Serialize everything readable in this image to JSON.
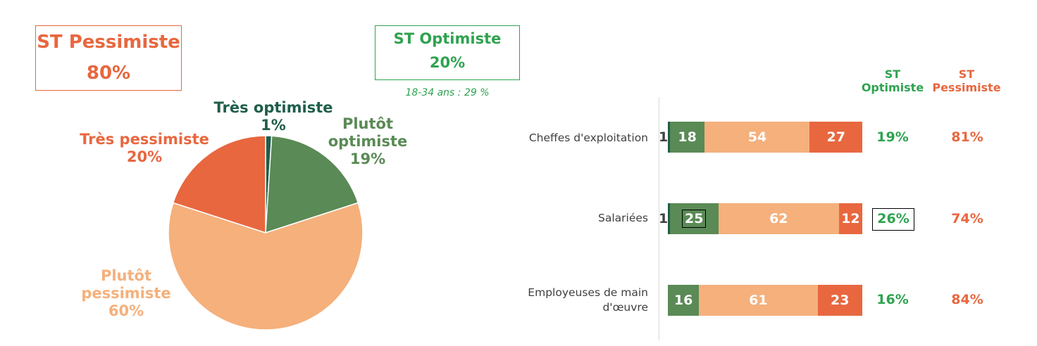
{
  "colors": {
    "tres_optimiste": "#1E5E4A",
    "plutot_optimiste": "#5A8A55",
    "plutot_pessimiste": "#F5B07C",
    "tres_pessimiste": "#E8673F",
    "st_optimiste_text": "#2EA350",
    "st_pessimiste_text": "#E8673F"
  },
  "summary": {
    "pessimiste_title": "ST Pessimiste",
    "pessimiste_value": "80%",
    "optimiste_title": "ST Optimiste",
    "optimiste_value": "20%",
    "age_note": "18-34 ans : 29 %"
  },
  "pie_labels": {
    "tres_optimiste": {
      "name": "Très optimiste",
      "value": "1%"
    },
    "plutot_optimiste": {
      "name1": "Plutôt",
      "name2": "optimiste",
      "value": "19%"
    },
    "plutot_pessimiste": {
      "name1": "Plutôt",
      "name2": "pessimiste",
      "value": "60%"
    },
    "tres_pessimiste": {
      "name": "Très pessimiste",
      "value": "20%"
    }
  },
  "table_headers": {
    "optimiste_1": "ST",
    "optimiste_2": "Optimiste",
    "pessimiste_1": "ST",
    "pessimiste_2": "Pessimiste"
  },
  "rows": [
    {
      "label": "Cheffes d'exploitation",
      "tres_opt": "1",
      "plutot_opt": "18",
      "plutot_pess": "54",
      "tres_pess": "27",
      "st_opt": "19%",
      "st_pess": "81%"
    },
    {
      "label": "Salariées",
      "tres_opt": "1",
      "plutot_opt": "25",
      "plutot_pess": "62",
      "tres_pess": "12",
      "st_opt": "26%",
      "st_pess": "74%"
    },
    {
      "label1": "Employeuses de main",
      "label2": "d'œuvre",
      "plutot_opt": "16",
      "plutot_pess": "61",
      "tres_pess": "23",
      "st_opt": "16%",
      "st_pess": "84%"
    }
  ],
  "chart_data": [
    {
      "type": "pie",
      "categories": [
        "Très optimiste",
        "Plutôt optimiste",
        "Plutôt pessimiste",
        "Très pessimiste"
      ],
      "values": [
        1,
        19,
        60,
        20
      ]
    },
    {
      "type": "bar",
      "orientation": "horizontal",
      "stacked": true,
      "categories": [
        "Cheffes d'exploitation",
        "Salariées",
        "Employeuses de main d'œuvre"
      ],
      "series": [
        {
          "values": [
            1,
            1,
            0
          ]
        },
        {
          "values": [
            18,
            25,
            16
          ]
        },
        {
          "values": [
            54,
            62,
            61
          ]
        },
        {
          "values": [
            27,
            12,
            23
          ]
        }
      ],
      "xlim": [
        0,
        100
      ]
    }
  ]
}
